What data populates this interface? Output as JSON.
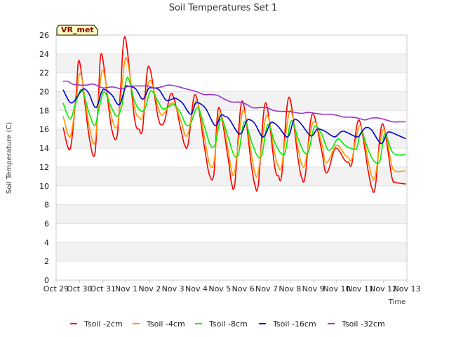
{
  "chart_data": {
    "type": "line",
    "title": "Soil Temperatures Set 1",
    "xlabel": "Time",
    "ylabel": "Soil Temperature (C)",
    "badge": "VR_met",
    "ylim": [
      0,
      26
    ],
    "yticks": [
      0,
      2,
      4,
      6,
      8,
      10,
      12,
      14,
      16,
      18,
      20,
      22,
      24,
      26
    ],
    "xlim": [
      0,
      15
    ],
    "xticks": [
      {
        "x": 0,
        "label": "Oct 29"
      },
      {
        "x": 1,
        "label": "Oct 30"
      },
      {
        "x": 2,
        "label": "Oct 31"
      },
      {
        "x": 3,
        "label": "Nov 1"
      },
      {
        "x": 4,
        "label": "Nov 2"
      },
      {
        "x": 5,
        "label": "Nov 3"
      },
      {
        "x": 6,
        "label": "Nov 4"
      },
      {
        "x": 7,
        "label": "Nov 5"
      },
      {
        "x": 8,
        "label": "Nov 6"
      },
      {
        "x": 9,
        "label": "Nov 7"
      },
      {
        "x": 10,
        "label": "Nov 8"
      },
      {
        "x": 11,
        "label": "Nov 9"
      },
      {
        "x": 12,
        "label": "Nov 10"
      },
      {
        "x": 13,
        "label": "Nov 11"
      },
      {
        "x": 14,
        "label": "Nov 12"
      },
      {
        "x": 15,
        "label": "Nov 13"
      }
    ],
    "series": [
      {
        "name": "Tsoil -2cm",
        "color": "#ff0000",
        "x": [
          0.3,
          0.6,
          0.85,
          1.0,
          1.4,
          1.65,
          1.8,
          1.95,
          2.35,
          2.6,
          2.75,
          2.95,
          3.35,
          3.55,
          3.7,
          3.95,
          4.35,
          4.5,
          4.65,
          4.95,
          5.35,
          5.5,
          5.65,
          5.95,
          6.35,
          6.55,
          6.75,
          6.95,
          7.35,
          7.5,
          7.65,
          7.95,
          8.35,
          8.5,
          8.65,
          8.95,
          9.35,
          9.5,
          9.65,
          9.95,
          10.35,
          10.5,
          10.65,
          10.95,
          11.35,
          11.5,
          11.65,
          11.95,
          12.35,
          12.5,
          12.65,
          12.95,
          13.35,
          13.5,
          13.65,
          13.95,
          14.35,
          14.5,
          14.65,
          14.95
        ],
        "y": [
          16.2,
          13.9,
          19.5,
          23.2,
          15.4,
          13.3,
          19.0,
          24.0,
          16.4,
          15.2,
          20.0,
          25.8,
          17.2,
          16.0,
          16.1,
          22.7,
          17.4,
          16.5,
          17.0,
          19.8,
          15.8,
          14.3,
          14.5,
          19.7,
          14.0,
          11.2,
          11.3,
          18.3,
          13.0,
          10.3,
          10.4,
          19.0,
          12.2,
          10.1,
          10.2,
          18.8,
          12.0,
          11.1,
          11.2,
          19.4,
          12.8,
          10.9,
          11.0,
          17.6,
          13.8,
          11.6,
          11.7,
          14.0,
          12.7,
          12.5,
          12.4,
          17.0,
          11.5,
          9.8,
          9.9,
          16.6,
          11.0,
          10.4,
          10.3,
          10.2
        ]
      },
      {
        "name": "Tsoil -4cm",
        "color": "#ff9900",
        "x": [
          0.3,
          0.6,
          0.85,
          1.05,
          1.4,
          1.65,
          1.8,
          2.0,
          2.35,
          2.6,
          2.75,
          3.0,
          3.35,
          3.55,
          3.7,
          4.0,
          4.35,
          4.5,
          4.65,
          5.0,
          5.35,
          5.5,
          5.65,
          6.0,
          6.35,
          6.55,
          6.75,
          7.0,
          7.35,
          7.5,
          7.65,
          8.0,
          8.35,
          8.5,
          8.65,
          9.0,
          9.35,
          9.5,
          9.65,
          10.0,
          10.35,
          10.5,
          10.65,
          11.0,
          11.35,
          11.5,
          11.65,
          12.0,
          12.35,
          12.5,
          12.65,
          13.0,
          13.35,
          13.5,
          13.65,
          14.0,
          14.35,
          14.5,
          14.65,
          14.95
        ],
        "y": [
          17.4,
          15.2,
          19.0,
          21.9,
          16.5,
          14.5,
          18.5,
          22.3,
          17.5,
          16.2,
          19.0,
          23.6,
          18.3,
          17.3,
          17.4,
          21.2,
          18.4,
          17.5,
          17.8,
          18.8,
          16.8,
          15.5,
          15.6,
          19.0,
          15.0,
          12.4,
          12.5,
          17.8,
          13.9,
          11.6,
          11.7,
          18.0,
          13.4,
          11.4,
          11.5,
          17.5,
          13.4,
          12.1,
          12.2,
          18.0,
          13.9,
          12.3,
          12.4,
          16.8,
          14.6,
          12.6,
          12.7,
          14.3,
          13.3,
          13.0,
          12.9,
          16.4,
          12.6,
          11.0,
          11.1,
          16.0,
          12.2,
          11.6,
          11.5,
          11.6
        ]
      },
      {
        "name": "Tsoil -8cm",
        "color": "#00ee00",
        "x": [
          0.3,
          0.6,
          0.85,
          1.1,
          1.4,
          1.65,
          1.85,
          2.05,
          2.35,
          2.6,
          2.8,
          3.05,
          3.35,
          3.6,
          3.8,
          4.05,
          4.35,
          4.55,
          4.75,
          5.05,
          5.35,
          5.55,
          5.75,
          6.05,
          6.35,
          6.6,
          6.8,
          7.05,
          7.35,
          7.6,
          7.8,
          8.05,
          8.35,
          8.6,
          8.8,
          9.05,
          9.35,
          9.6,
          9.8,
          10.05,
          10.35,
          10.6,
          10.8,
          11.05,
          11.35,
          11.6,
          11.8,
          12.05,
          12.35,
          12.6,
          12.85,
          13.05,
          13.35,
          13.6,
          13.85,
          14.05,
          14.35,
          14.6,
          14.85,
          14.95
        ],
        "y": [
          18.8,
          17.1,
          18.9,
          20.2,
          17.8,
          16.4,
          18.4,
          20.0,
          18.4,
          17.4,
          18.4,
          21.5,
          19.0,
          18.0,
          18.2,
          20.1,
          19.0,
          18.2,
          18.3,
          18.6,
          17.6,
          16.5,
          16.6,
          18.3,
          16.2,
          14.3,
          14.4,
          17.1,
          15.2,
          13.3,
          13.4,
          16.8,
          14.7,
          13.2,
          13.3,
          16.5,
          14.6,
          13.5,
          13.6,
          16.9,
          15.0,
          13.6,
          13.7,
          16.3,
          15.5,
          13.9,
          14.0,
          15.0,
          14.3,
          14.0,
          14.0,
          15.7,
          13.8,
          12.6,
          12.7,
          15.5,
          13.7,
          13.3,
          13.3,
          13.4
        ]
      },
      {
        "name": "Tsoil -16cm",
        "color": "#0000cc",
        "x": [
          0.3,
          0.65,
          1.05,
          1.2,
          1.4,
          1.7,
          1.95,
          2.1,
          2.4,
          2.7,
          2.95,
          3.05,
          3.4,
          3.7,
          3.95,
          4.1,
          4.4,
          4.7,
          4.95,
          5.1,
          5.4,
          5.75,
          5.95,
          6.1,
          6.4,
          6.8,
          7.05,
          7.2,
          7.4,
          7.85,
          8.15,
          8.3,
          8.5,
          8.85,
          9.15,
          9.3,
          9.5,
          9.9,
          10.15,
          10.3,
          10.5,
          10.9,
          11.15,
          11.3,
          11.5,
          11.9,
          12.15,
          12.3,
          12.5,
          12.9,
          13.15,
          13.3,
          13.5,
          13.9,
          14.15,
          14.3,
          14.5,
          14.95
        ],
        "y": [
          20.2,
          18.8,
          20.0,
          20.3,
          19.8,
          18.3,
          20.0,
          20.2,
          19.6,
          18.6,
          20.4,
          20.6,
          20.3,
          19.2,
          20.3,
          20.4,
          20.2,
          19.1,
          19.2,
          19.3,
          18.8,
          17.6,
          18.7,
          18.8,
          18.2,
          16.4,
          17.5,
          17.4,
          17.1,
          15.5,
          16.9,
          17.0,
          16.6,
          15.2,
          16.6,
          16.7,
          16.3,
          15.2,
          16.9,
          17.0,
          16.5,
          15.3,
          16.0,
          16.0,
          15.8,
          15.2,
          15.7,
          15.8,
          15.6,
          15.2,
          16.0,
          16.2,
          15.9,
          14.5,
          15.6,
          15.7,
          15.5,
          15.0
        ]
      },
      {
        "name": "Tsoil -32cm",
        "color": "#9933cc",
        "x": [
          0.3,
          0.5,
          0.7,
          1.0,
          1.3,
          1.6,
          2.0,
          2.4,
          2.8,
          3.0,
          3.3,
          3.6,
          3.9,
          4.2,
          4.5,
          4.8,
          5.1,
          5.4,
          5.7,
          6.0,
          6.3,
          6.6,
          6.9,
          7.2,
          7.5,
          7.8,
          8.1,
          8.4,
          8.7,
          9.0,
          9.3,
          9.6,
          9.9,
          10.2,
          10.5,
          10.8,
          11.1,
          11.4,
          11.7,
          12.0,
          12.3,
          12.6,
          12.9,
          13.2,
          13.5,
          13.8,
          14.1,
          14.4,
          14.7,
          14.95
        ],
        "y": [
          21.1,
          21.1,
          20.8,
          20.7,
          20.7,
          20.8,
          20.4,
          20.5,
          20.3,
          20.5,
          20.6,
          20.6,
          20.6,
          20.4,
          20.5,
          20.7,
          20.6,
          20.4,
          20.2,
          20.0,
          19.7,
          19.7,
          19.6,
          19.2,
          18.9,
          18.9,
          18.7,
          18.3,
          18.3,
          18.3,
          18.0,
          17.9,
          17.9,
          17.8,
          17.7,
          17.8,
          17.7,
          17.6,
          17.6,
          17.5,
          17.3,
          17.3,
          17.2,
          17.0,
          17.2,
          17.2,
          17.0,
          16.8,
          16.8,
          16.8
        ]
      }
    ]
  }
}
